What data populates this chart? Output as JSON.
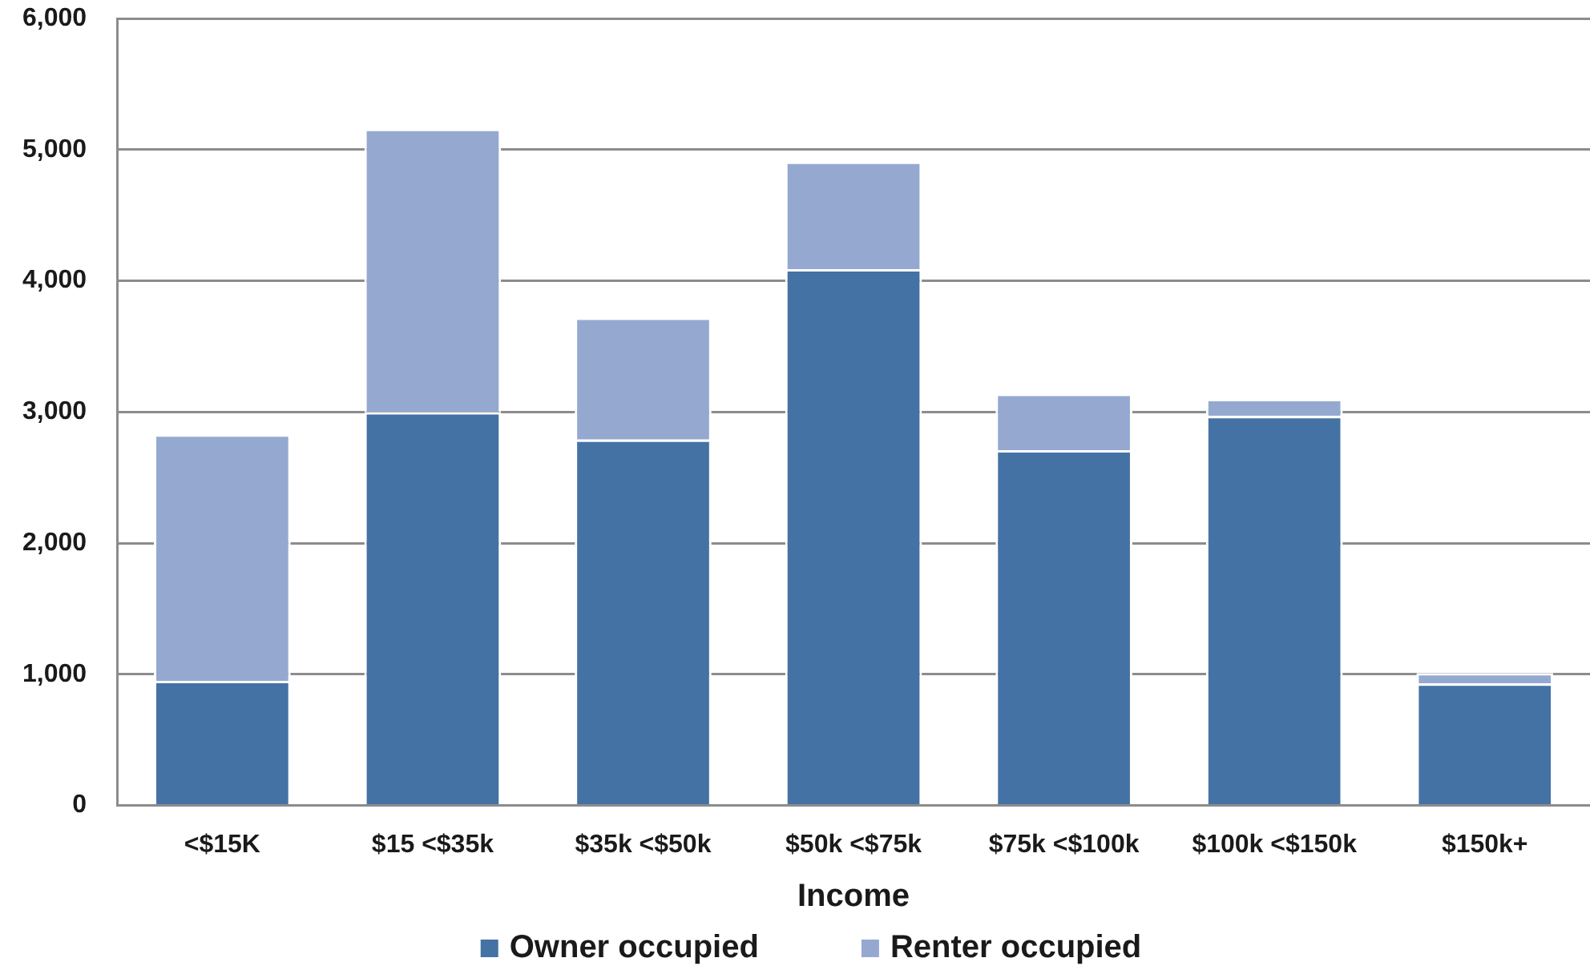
{
  "chart_data": {
    "type": "bar",
    "xlabel": "Income",
    "categories": [
      "<$15K",
      "$15 <$35k",
      "$35k <$50k",
      "$50k <$75k",
      "$75k <$100k",
      "$100k <$150k",
      "$150k+"
    ],
    "series": [
      {
        "name": "Owner occupied",
        "color": "#4472a4",
        "values": [
          950,
          3000,
          2790,
          4090,
          2710,
          2970,
          930
        ]
      },
      {
        "name": "Renter occupied",
        "color": "#95a9d0",
        "values": [
          1880,
          2160,
          930,
          820,
          430,
          130,
          80
        ]
      }
    ],
    "stacked": true,
    "ylim": [
      0,
      6000
    ],
    "yticks": [
      0,
      {
        "value": 1000,
        "label": "1,000"
      },
      {
        "value": 2000,
        "label": "2,000"
      },
      {
        "value": 3000,
        "label": "3,000"
      },
      {
        "value": 4000,
        "label": "4,000"
      },
      {
        "value": 5000,
        "label": "5,000"
      },
      {
        "value": 6000,
        "label": "6,000"
      }
    ],
    "grid": "y",
    "legend": "bottom"
  }
}
